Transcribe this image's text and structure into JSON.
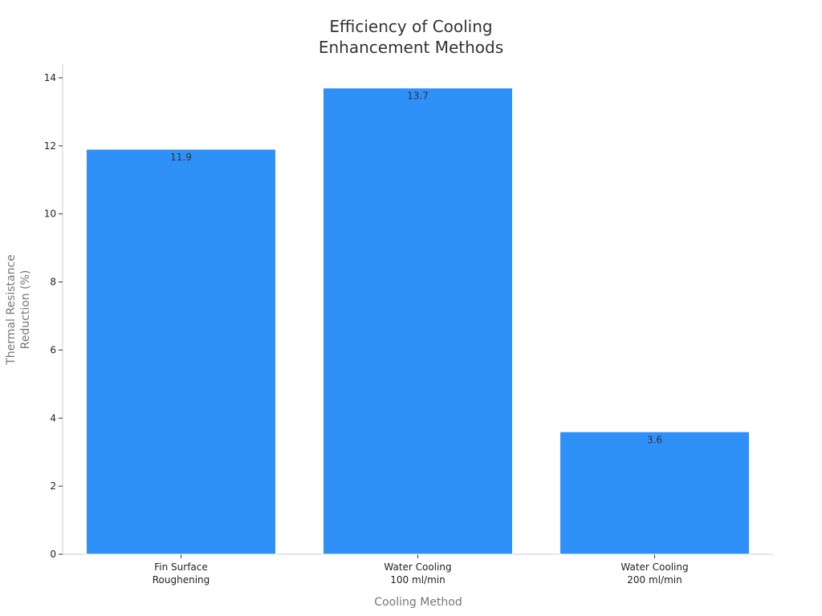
{
  "chart_data": {
    "type": "bar",
    "title_lines": [
      "Efficiency of Cooling",
      "Enhancement Methods"
    ],
    "xlabel": "Cooling Method",
    "ylabel_lines": [
      "Thermal Resistance",
      "Reduction (%)"
    ],
    "categories": [
      [
        "Fin Surface",
        "Roughening"
      ],
      [
        "Water Cooling",
        "100 ml/min"
      ],
      [
        "Water Cooling",
        "200 ml/min"
      ]
    ],
    "values": [
      11.9,
      13.7,
      3.6
    ],
    "data_labels": [
      "11.9",
      "13.7",
      "3.6"
    ],
    "ylim": [
      0,
      14.4
    ],
    "yticks": [
      0,
      2,
      4,
      6,
      8,
      10,
      12,
      14
    ],
    "grid": false,
    "bar_color": "#2f91f7"
  }
}
